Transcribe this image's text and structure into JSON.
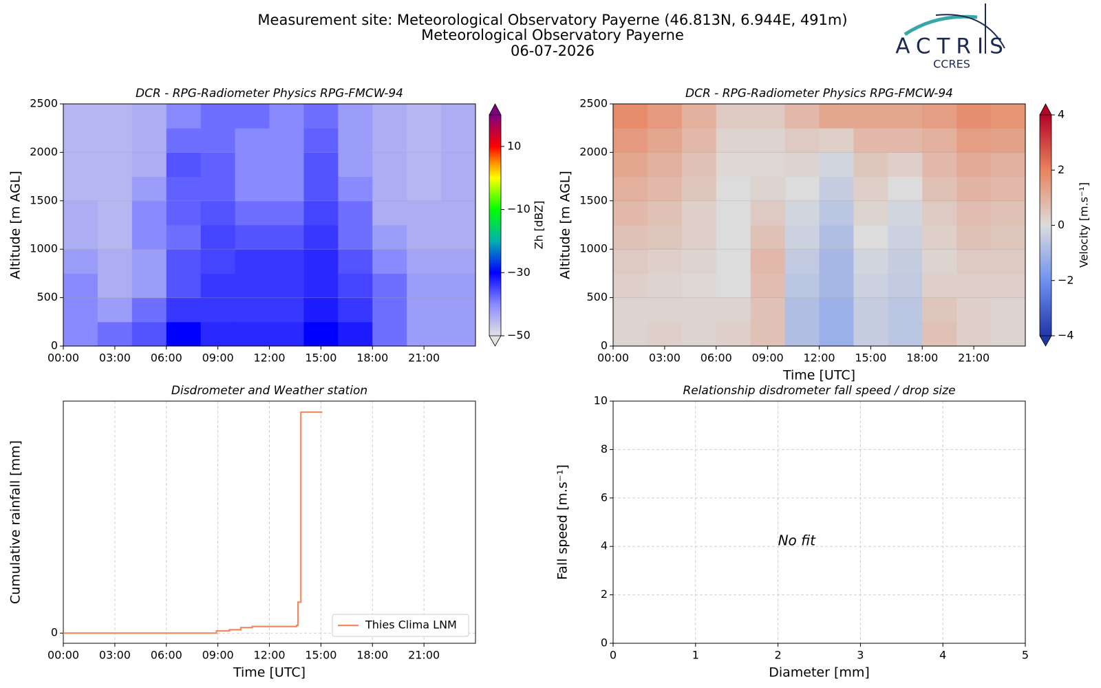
{
  "page_title": [
    "Measurement site: Meteorological Observatory Payerne (46.813N, 6.944E, 491m)",
    "Meteorological Observatory Payerne",
    "06-07-2026"
  ],
  "logo": {
    "name": "ACTRIS",
    "sub": "CCRES"
  },
  "chart_data": [
    {
      "type": "heatmap",
      "title": "DCR - RPG-Radiometer Physics RPG-FMCW-94",
      "ylabel": "Altitude [m AGL]",
      "xlim": [
        0,
        24
      ],
      "xticks": [
        {
          "value": 0,
          "label": "00:00"
        },
        {
          "value": 3,
          "label": "03:00"
        },
        {
          "value": 6,
          "label": "06:00"
        },
        {
          "value": 9,
          "label": "09:00"
        },
        {
          "value": 12,
          "label": "12:00"
        },
        {
          "value": 15,
          "label": "15:00"
        },
        {
          "value": 18,
          "label": "18:00"
        },
        {
          "value": 21,
          "label": "21:00"
        }
      ],
      "ylim": [
        0,
        2500
      ],
      "yticks": [
        0,
        500,
        1000,
        1500,
        2000,
        2500
      ],
      "grid": true,
      "x_edges": [
        0,
        2,
        4,
        6,
        8,
        10,
        12,
        14,
        16,
        18,
        20,
        22,
        24
      ],
      "y_edges": [
        0,
        250,
        500,
        750,
        1000,
        1250,
        1500,
        1750,
        2000,
        2250,
        2500
      ],
      "z": [
        [
          -40,
          -38,
          -36,
          -30,
          -33,
          -33,
          -33,
          -30,
          -32,
          -38,
          -42,
          -42
        ],
        [
          -40,
          -42,
          -38,
          -34,
          -34,
          -34,
          -34,
          -32,
          -34,
          -38,
          -42,
          -42
        ],
        [
          -40,
          -44,
          -42,
          -36,
          -34,
          -34,
          -34,
          -33,
          -35,
          -38,
          -42,
          -42
        ],
        [
          -42,
          -44,
          -42,
          -36,
          -35,
          -34,
          -34,
          -33,
          -36,
          -40,
          -43,
          -43
        ],
        [
          -44,
          -45,
          -40,
          -38,
          -35,
          -36,
          -36,
          -34,
          -38,
          -42,
          -44,
          -44
        ],
        [
          -44,
          -45,
          -40,
          -37,
          -36,
          -38,
          -38,
          -35,
          -38,
          -44,
          -44,
          -44
        ],
        [
          -45,
          -45,
          -42,
          -37,
          -37,
          -40,
          -40,
          -36,
          -40,
          -44,
          -45,
          -44
        ],
        [
          -45,
          -45,
          -44,
          -36,
          -37,
          -40,
          -40,
          -36,
          -42,
          -44,
          -45,
          -44
        ],
        [
          -45,
          -45,
          -44,
          -38,
          -38,
          -40,
          -40,
          -37,
          -42,
          -44,
          -45,
          -44
        ],
        [
          -45,
          -45,
          -44,
          -40,
          -38,
          -38,
          -40,
          -38,
          -42,
          -44,
          -45,
          -44
        ]
      ],
      "colorbar": {
        "label": "Zh [dBZ]",
        "lim": [
          -50,
          20
        ],
        "ticks": [
          {
            "value": 10,
            "label": "10"
          },
          {
            "value": -10,
            "label": "−10"
          },
          {
            "value": -30,
            "label": "−30"
          },
          {
            "value": -50,
            "label": "−50"
          }
        ],
        "colorscale": [
          {
            "value": -50,
            "color": "#e2e2e2"
          },
          {
            "value": -40,
            "color": "#8a8aff"
          },
          {
            "value": -30,
            "color": "#0000ff"
          },
          {
            "value": -20,
            "color": "#00b0b0"
          },
          {
            "value": -10,
            "color": "#00ff00"
          },
          {
            "value": 0,
            "color": "#ffff00"
          },
          {
            "value": 5,
            "color": "#ff8c00"
          },
          {
            "value": 10,
            "color": "#ff0000"
          },
          {
            "value": 20,
            "color": "#800080"
          }
        ]
      }
    },
    {
      "type": "heatmap",
      "title": "DCR - RPG-Radiometer Physics RPG-FMCW-94",
      "ylabel": "Altitude [m AGL]",
      "xlabel": "Time [UTC]",
      "xlim": [
        0,
        24
      ],
      "xticks": [
        {
          "value": 0,
          "label": "00:00"
        },
        {
          "value": 3,
          "label": "03:00"
        },
        {
          "value": 6,
          "label": "06:00"
        },
        {
          "value": 9,
          "label": "09:00"
        },
        {
          "value": 12,
          "label": "12:00"
        },
        {
          "value": 15,
          "label": "15:00"
        },
        {
          "value": 18,
          "label": "18:00"
        },
        {
          "value": 21,
          "label": "21:00"
        }
      ],
      "ylim": [
        0,
        2500
      ],
      "yticks": [
        0,
        500,
        1000,
        1500,
        2000,
        2500
      ],
      "grid": true,
      "x_edges": [
        0,
        2,
        4,
        6,
        8,
        10,
        12,
        14,
        16,
        18,
        20,
        22,
        24
      ],
      "y_edges": [
        0,
        250,
        500,
        750,
        1000,
        1250,
        1500,
        1750,
        2000,
        2250,
        2500
      ],
      "z": [
        [
          0.2,
          0.3,
          0.2,
          0.3,
          0.6,
          -0.8,
          -1.2,
          -0.4,
          -0.6,
          0.6,
          0.3,
          0.2
        ],
        [
          0.2,
          0.2,
          0.2,
          0.2,
          0.6,
          -0.8,
          -1.2,
          -0.4,
          -0.6,
          0.5,
          0.3,
          0.2
        ],
        [
          0.3,
          0.2,
          0.1,
          0,
          0.7,
          -0.6,
          -1,
          -0.3,
          -0.5,
          0.3,
          0.3,
          0.3
        ],
        [
          0.4,
          0.3,
          0.2,
          0,
          0.8,
          -0.5,
          -1,
          -0.2,
          -0.4,
          0.2,
          0.4,
          0.4
        ],
        [
          0.6,
          0.5,
          0.3,
          0,
          0.6,
          -0.3,
          -0.8,
          0,
          -0.3,
          0.3,
          0.6,
          0.5
        ],
        [
          0.8,
          0.6,
          0.3,
          0,
          0.4,
          -0.2,
          -0.6,
          0.2,
          -0.2,
          0.4,
          0.7,
          0.6
        ],
        [
          1,
          0.8,
          0.5,
          0,
          0.2,
          0,
          -0.4,
          0.3,
          0,
          0.6,
          0.9,
          0.8
        ],
        [
          1.2,
          1,
          0.6,
          0.1,
          0.1,
          0.2,
          -0.2,
          0.5,
          0.3,
          0.8,
          1.1,
          1
        ],
        [
          1.5,
          1.2,
          0.8,
          0.2,
          0.2,
          0.4,
          0.3,
          0.8,
          0.8,
          1,
          1.4,
          1.3
        ],
        [
          1.8,
          1.5,
          1,
          0.4,
          0.4,
          0.8,
          1.2,
          1.2,
          1.2,
          1.4,
          1.7,
          1.6
        ]
      ],
      "colorbar": {
        "label": "Velocity [m.s⁻¹]",
        "lim": [
          -4,
          4
        ],
        "ticks": [
          {
            "value": 4,
            "label": "4"
          },
          {
            "value": 2,
            "label": "2"
          },
          {
            "value": 0,
            "label": "0"
          },
          {
            "value": -2,
            "label": "−2"
          },
          {
            "value": -4,
            "label": "−4"
          }
        ],
        "colorscale": [
          {
            "value": -4,
            "color": "#2236a8"
          },
          {
            "value": -2,
            "color": "#6f92f0"
          },
          {
            "value": 0,
            "color": "#dcdcdc"
          },
          {
            "value": 2,
            "color": "#e8835e"
          },
          {
            "value": 4,
            "color": "#b40426"
          }
        ]
      }
    },
    {
      "type": "line",
      "title": "Disdrometer and Weather station",
      "xlabel": "Time [UTC]",
      "ylabel": "Cumulative rainfall [mm]",
      "xlim": [
        0,
        24
      ],
      "xticks": [
        {
          "value": 0,
          "label": "00:00"
        },
        {
          "value": 3,
          "label": "03:00"
        },
        {
          "value": 6,
          "label": "06:00"
        },
        {
          "value": 9,
          "label": "09:00"
        },
        {
          "value": 12,
          "label": "12:00"
        },
        {
          "value": 15,
          "label": "15:00"
        },
        {
          "value": 18,
          "label": "18:00"
        },
        {
          "value": 21,
          "label": "21:00"
        }
      ],
      "ylim": [
        -0.46,
        10.5
      ],
      "yticks": [
        0
      ],
      "grid": true,
      "legend": "lower right",
      "step": "post",
      "x": [
        "00:00",
        "08:55",
        "09:40",
        "10:20",
        "11:00",
        "13:35",
        "13:40",
        "13:50",
        "15:05"
      ],
      "series": [
        {
          "name": "Thies Clima LNM",
          "color": "#ef8a62",
          "values": [
            0,
            0.1,
            0.15,
            0.25,
            0.3,
            0.35,
            1.4,
            10,
            10
          ]
        }
      ]
    },
    {
      "type": "scatter",
      "title": "Relationship disdrometer fall speed / drop size",
      "xlabel": "Diameter [mm]",
      "ylabel": "Fall speed [m.s⁻¹]",
      "xlim": [
        0,
        5
      ],
      "xticks": [
        0,
        1,
        2,
        3,
        4,
        5
      ],
      "ylim": [
        0,
        10
      ],
      "yticks": [
        0,
        2,
        4,
        6,
        8,
        10
      ],
      "grid": true,
      "annotation": {
        "text": "No fit",
        "x": 2,
        "y": 4.2
      }
    }
  ]
}
